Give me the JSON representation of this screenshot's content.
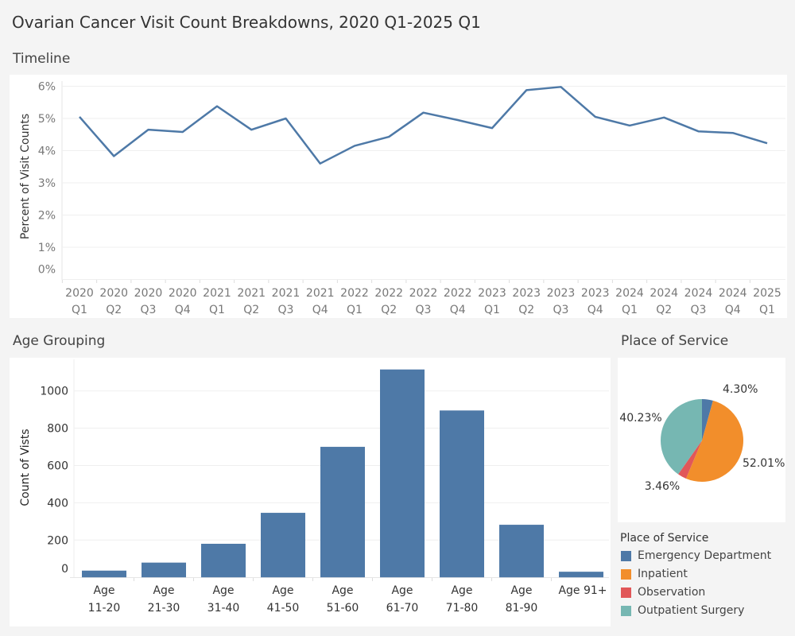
{
  "title": "Ovarian Cancer Visit Count Breakdowns, 2020 Q1-2025 Q1",
  "sections": {
    "timeline": "Timeline",
    "age": "Age Grouping",
    "place": "Place of Service"
  },
  "chart_data": [
    {
      "type": "line",
      "ylabel": "Percent of Visit Counts",
      "categories": [
        [
          "2020",
          "Q1"
        ],
        [
          "2020",
          "Q2"
        ],
        [
          "2020",
          "Q3"
        ],
        [
          "2020",
          "Q4"
        ],
        [
          "2021",
          "Q1"
        ],
        [
          "2021",
          "Q2"
        ],
        [
          "2021",
          "Q3"
        ],
        [
          "2021",
          "Q4"
        ],
        [
          "2022",
          "Q1"
        ],
        [
          "2022",
          "Q2"
        ],
        [
          "2022",
          "Q3"
        ],
        [
          "2022",
          "Q4"
        ],
        [
          "2023",
          "Q1"
        ],
        [
          "2023",
          "Q2"
        ],
        [
          "2023",
          "Q3"
        ],
        [
          "2023",
          "Q4"
        ],
        [
          "2024",
          "Q1"
        ],
        [
          "2024",
          "Q2"
        ],
        [
          "2024",
          "Q3"
        ],
        [
          "2024",
          "Q4"
        ],
        [
          "2025",
          "Q1"
        ]
      ],
      "values": [
        5.05,
        3.83,
        4.65,
        4.58,
        5.38,
        4.65,
        5.0,
        3.6,
        4.15,
        4.43,
        5.18,
        4.95,
        4.7,
        5.88,
        5.98,
        5.05,
        4.78,
        5.03,
        4.6,
        4.55,
        4.23
      ],
      "yticks": [
        "0%",
        "1%",
        "2%",
        "3%",
        "4%",
        "5%",
        "6%"
      ],
      "ylim": [
        0,
        6.2
      ],
      "grid": true,
      "color": "#4e79a7"
    },
    {
      "type": "bar",
      "ylabel": "Count of Vists",
      "categories": [
        [
          "Age",
          "11-20"
        ],
        [
          "Age",
          "21-30"
        ],
        [
          "Age",
          "31-40"
        ],
        [
          "Age",
          "41-50"
        ],
        [
          "Age",
          "51-60"
        ],
        [
          "Age",
          "61-70"
        ],
        [
          "Age",
          "71-80"
        ],
        [
          "Age",
          "81-90"
        ],
        [
          "Age 91+"
        ]
      ],
      "values": [
        36,
        79,
        180,
        346,
        700,
        1115,
        895,
        282,
        30
      ],
      "yticks": [
        "0",
        "200",
        "400",
        "600",
        "800",
        "1000"
      ],
      "ylim": [
        0,
        1170
      ],
      "grid": true,
      "color": "#4e79a7"
    },
    {
      "type": "pie",
      "legend_title": "Place of Service",
      "legend_placement": "bottom",
      "slices": [
        {
          "name": "Emergency Department",
          "value": 4.3,
          "label": "4.30%",
          "color": "#4e79a7"
        },
        {
          "name": "Inpatient",
          "value": 52.01,
          "label": "52.01%",
          "color": "#f28e2b"
        },
        {
          "name": "Observation",
          "value": 3.46,
          "label": "3.46%",
          "color": "#e15759"
        },
        {
          "name": "Outpatient Surgery",
          "value": 40.23,
          "label": "40.23%",
          "color": "#76b7b2"
        }
      ]
    }
  ]
}
